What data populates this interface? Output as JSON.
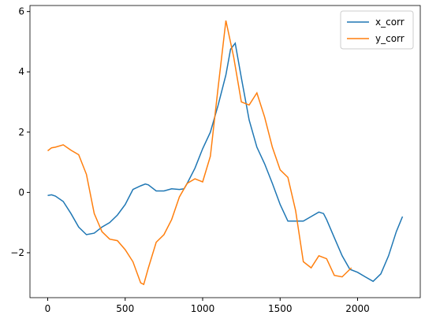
{
  "chart_data": {
    "type": "line",
    "xlim": [
      -114.5,
      2404.5
    ],
    "ylim": [
      -3.49,
      6.2
    ],
    "xticks": [
      0,
      500,
      1000,
      1500,
      2000
    ],
    "yticks": [
      {
        "value": -2,
        "label": "−2"
      },
      0,
      2,
      4,
      6
    ],
    "legend": "upper right",
    "series": [
      {
        "name": "x_corr",
        "color": "#1f77b4",
        "x": [
          0,
          25,
          50,
          100,
          150,
          200,
          250,
          300,
          350,
          400,
          450,
          500,
          550,
          600,
          630,
          650,
          700,
          750,
          800,
          850,
          880,
          900,
          950,
          1000,
          1050,
          1100,
          1150,
          1180,
          1210,
          1250,
          1300,
          1350,
          1400,
          1450,
          1500,
          1550,
          1600,
          1650,
          1700,
          1750,
          1780,
          1800,
          1850,
          1900,
          1950,
          2000,
          2050,
          2100,
          2150,
          2200,
          2250,
          2290
        ],
        "values": [
          -0.1,
          -0.08,
          -0.12,
          -0.3,
          -0.7,
          -1.15,
          -1.4,
          -1.35,
          -1.15,
          -1.0,
          -0.75,
          -0.4,
          0.1,
          0.22,
          0.28,
          0.25,
          0.05,
          0.05,
          0.12,
          0.1,
          0.12,
          0.3,
          0.8,
          1.45,
          2.0,
          2.9,
          3.9,
          4.75,
          4.95,
          3.8,
          2.4,
          1.5,
          0.95,
          0.3,
          -0.4,
          -0.95,
          -0.95,
          -0.95,
          -0.8,
          -0.65,
          -0.7,
          -0.9,
          -1.5,
          -2.1,
          -2.55,
          -2.65,
          -2.8,
          -2.95,
          -2.7,
          -2.1,
          -1.3,
          -0.8
        ]
      },
      {
        "name": "y_corr",
        "color": "#ff7f0e",
        "x": [
          0,
          25,
          50,
          100,
          150,
          200,
          250,
          300,
          350,
          400,
          450,
          500,
          550,
          600,
          620,
          650,
          700,
          750,
          800,
          850,
          900,
          950,
          1000,
          1050,
          1100,
          1150,
          1200,
          1250,
          1300,
          1350,
          1400,
          1450,
          1500,
          1550,
          1600,
          1650,
          1700,
          1750,
          1800,
          1850,
          1900,
          1960
        ],
        "values": [
          1.38,
          1.48,
          1.5,
          1.58,
          1.4,
          1.25,
          0.6,
          -0.7,
          -1.3,
          -1.55,
          -1.6,
          -1.9,
          -2.3,
          -3.0,
          -3.05,
          -2.5,
          -1.65,
          -1.4,
          -0.9,
          -0.15,
          0.3,
          0.45,
          0.35,
          1.2,
          3.5,
          5.7,
          4.5,
          3.0,
          2.9,
          3.3,
          2.5,
          1.5,
          0.75,
          0.5,
          -0.6,
          -2.3,
          -2.5,
          -2.1,
          -2.2,
          -2.75,
          -2.8,
          -2.5
        ]
      }
    ]
  }
}
